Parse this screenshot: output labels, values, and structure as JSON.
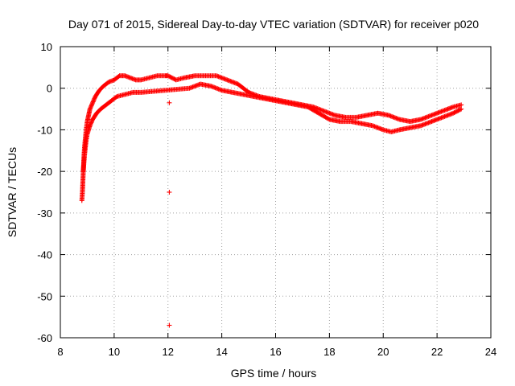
{
  "chart_data": {
    "type": "scatter",
    "title": "Day 071 of 2015, Sidereal Day-to-day VTEC variation (SDTVAR) for receiver p020",
    "xlabel": "GPS time / hours",
    "ylabel": "SDTVAR / TECUs",
    "xlim": [
      8,
      24
    ],
    "ylim": [
      -60,
      10
    ],
    "xticks": [
      8,
      10,
      12,
      14,
      16,
      18,
      20,
      22,
      24
    ],
    "yticks": [
      10,
      0,
      -10,
      -20,
      -30,
      -40,
      -50,
      -60
    ],
    "grid": true,
    "marker": "+",
    "color": "#ff0000",
    "series": [
      {
        "name": "track-upper",
        "points": [
          [
            8.8,
            -27.0
          ],
          [
            8.82,
            -25.0
          ],
          [
            8.84,
            -22.0
          ],
          [
            8.86,
            -19.0
          ],
          [
            8.88,
            -16.0
          ],
          [
            8.9,
            -14.0
          ],
          [
            8.93,
            -12.0
          ],
          [
            8.96,
            -10.0
          ],
          [
            9.0,
            -8.0
          ],
          [
            9.05,
            -6.5
          ],
          [
            9.1,
            -5.0
          ],
          [
            9.2,
            -3.5
          ],
          [
            9.3,
            -2.0
          ],
          [
            9.45,
            -0.5
          ],
          [
            9.6,
            0.5
          ],
          [
            9.8,
            1.5
          ],
          [
            10.0,
            2.0
          ],
          [
            10.2,
            3.0
          ],
          [
            10.4,
            3.0
          ],
          [
            10.6,
            2.5
          ],
          [
            10.8,
            2.0
          ],
          [
            11.0,
            2.0
          ],
          [
            11.3,
            2.5
          ],
          [
            11.6,
            3.0
          ],
          [
            11.9,
            3.0
          ],
          [
            12.0,
            3.0
          ],
          [
            12.3,
            2.0
          ],
          [
            12.6,
            2.5
          ],
          [
            13.0,
            3.0
          ],
          [
            13.4,
            3.0
          ],
          [
            13.8,
            3.0
          ],
          [
            14.2,
            2.0
          ],
          [
            14.6,
            1.0
          ],
          [
            15.0,
            -1.0
          ],
          [
            15.4,
            -2.0
          ],
          [
            15.8,
            -2.5
          ],
          [
            16.2,
            -3.0
          ],
          [
            16.6,
            -3.5
          ],
          [
            17.0,
            -4.0
          ],
          [
            17.4,
            -4.5
          ],
          [
            17.8,
            -5.5
          ],
          [
            18.2,
            -6.5
          ],
          [
            18.6,
            -7.0
          ],
          [
            19.0,
            -7.0
          ],
          [
            19.4,
            -6.5
          ],
          [
            19.8,
            -6.0
          ],
          [
            20.2,
            -6.5
          ],
          [
            20.6,
            -7.5
          ],
          [
            21.0,
            -8.0
          ],
          [
            21.4,
            -7.5
          ],
          [
            21.8,
            -6.5
          ],
          [
            22.2,
            -5.5
          ],
          [
            22.6,
            -4.5
          ],
          [
            22.9,
            -4.0
          ]
        ]
      },
      {
        "name": "track-lower",
        "points": [
          [
            8.85,
            -20.0
          ],
          [
            8.9,
            -16.0
          ],
          [
            8.95,
            -13.0
          ],
          [
            9.0,
            -11.0
          ],
          [
            9.1,
            -9.0
          ],
          [
            9.2,
            -7.5
          ],
          [
            9.35,
            -6.0
          ],
          [
            9.5,
            -5.0
          ],
          [
            9.7,
            -4.0
          ],
          [
            9.9,
            -3.0
          ],
          [
            10.1,
            -2.0
          ],
          [
            10.4,
            -1.5
          ],
          [
            10.7,
            -1.0
          ],
          [
            11.0,
            -1.0
          ],
          [
            12.8,
            0.0
          ],
          [
            13.2,
            1.0
          ],
          [
            13.6,
            0.5
          ],
          [
            14.0,
            -0.5
          ],
          [
            14.4,
            -1.0
          ],
          [
            14.8,
            -1.5
          ],
          [
            15.2,
            -2.0
          ],
          [
            15.6,
            -2.5
          ],
          [
            16.0,
            -3.0
          ],
          [
            16.4,
            -3.5
          ],
          [
            16.8,
            -4.0
          ],
          [
            17.2,
            -4.5
          ],
          [
            17.6,
            -6.0
          ],
          [
            18.0,
            -7.5
          ],
          [
            18.4,
            -8.0
          ],
          [
            18.8,
            -8.0
          ],
          [
            19.2,
            -8.5
          ],
          [
            19.6,
            -9.0
          ],
          [
            20.0,
            -10.0
          ],
          [
            20.3,
            -10.5
          ],
          [
            20.6,
            -10.0
          ],
          [
            21.0,
            -9.5
          ],
          [
            21.4,
            -9.0
          ],
          [
            21.8,
            -8.0
          ],
          [
            22.2,
            -7.0
          ],
          [
            22.6,
            -6.0
          ],
          [
            22.9,
            -5.0
          ]
        ]
      },
      {
        "name": "outliers",
        "points": [
          [
            12.05,
            -3.5
          ],
          [
            12.05,
            -25.0
          ],
          [
            12.05,
            -57.0
          ]
        ]
      }
    ]
  }
}
